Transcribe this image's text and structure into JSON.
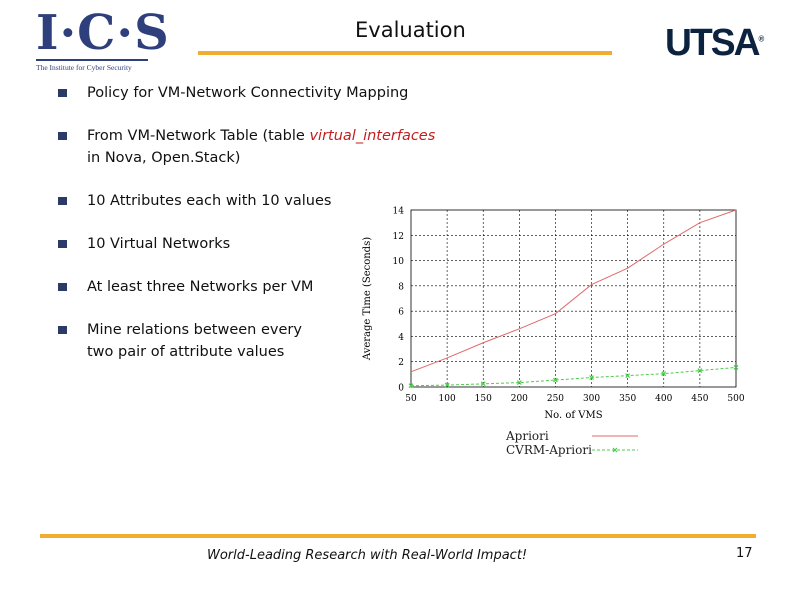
{
  "header": {
    "ics_logo_mark": "I·C·S",
    "ics_logo_subtitle": "The Institute for Cyber Security",
    "title": "Evaluation",
    "utsa_logo_text": "UTSA",
    "utsa_logo_reg": "®"
  },
  "bullets": [
    {
      "text": "Policy for VM-Network Connectivity Mapping"
    },
    {
      "text_before": "From VM-Network Table (table ",
      "highlight": "virtual_interfaces",
      "line2": "in Nova, Open.Stack)"
    },
    {
      "text": "10 Attributes each with 10 values"
    },
    {
      "text": "10 Virtual Networks"
    },
    {
      "text": "At least three Networks per VM"
    },
    {
      "text": "Mine relations between every",
      "line2": "two pair of attribute values"
    }
  ],
  "colors": {
    "accent_orange": "#f0ad30",
    "navy": "#2b3a67",
    "highlight_red": "#c41e1e",
    "apriori_line": "#e06a6a",
    "cvrm_line": "#4ccc4c"
  },
  "chart_data": {
    "type": "line",
    "xlabel": "No. of VMS",
    "ylabel": "Average Time (Seconds)",
    "x": [
      50,
      100,
      150,
      200,
      250,
      300,
      350,
      400,
      450,
      500
    ],
    "xlim": [
      50,
      500
    ],
    "ylim": [
      0,
      14
    ],
    "yticks": [
      0,
      2,
      4,
      6,
      8,
      10,
      12,
      14
    ],
    "grid": true,
    "legend": "bottom",
    "series": [
      {
        "name": "Apriori",
        "values": [
          1.2,
          2.3,
          3.5,
          4.6,
          5.8,
          8.1,
          9.4,
          11.3,
          13.0,
          14.0
        ]
      },
      {
        "name": "CVRM-Apriori",
        "values": [
          0.1,
          0.15,
          0.25,
          0.35,
          0.55,
          0.75,
          0.9,
          1.05,
          1.3,
          1.55
        ]
      }
    ]
  },
  "footer": {
    "tagline": "World-Leading Research with Real-World Impact!",
    "page_number": "17"
  }
}
